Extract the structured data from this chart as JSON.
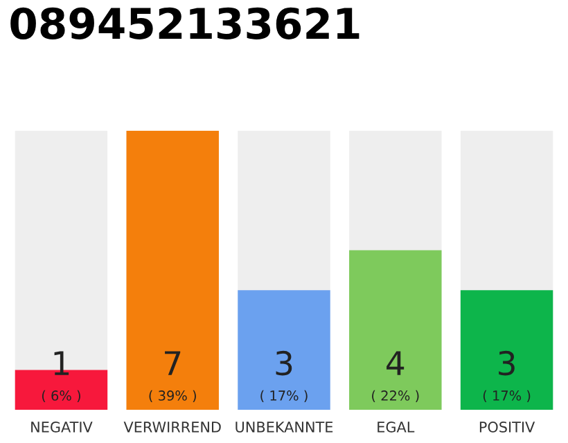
{
  "chart_data": {
    "type": "bar",
    "title": "089452133621",
    "categories": [
      "NEGATIV",
      "VERWIRREND",
      "UNBEKANNTE",
      "EGAL",
      "POSITIV"
    ],
    "values": [
      1,
      7,
      3,
      4,
      3
    ],
    "colors": [
      "#f7183c",
      "#f47f0c",
      "#6ba1ef",
      "#7eca5c",
      "#0db54b"
    ],
    "value_labels": [
      "1\n( 6% )",
      "7\n( 39% )",
      "3\n( 17% )",
      "4\n( 22% )",
      "3\n( 17% )"
    ],
    "grid": false,
    "legend": false
  }
}
